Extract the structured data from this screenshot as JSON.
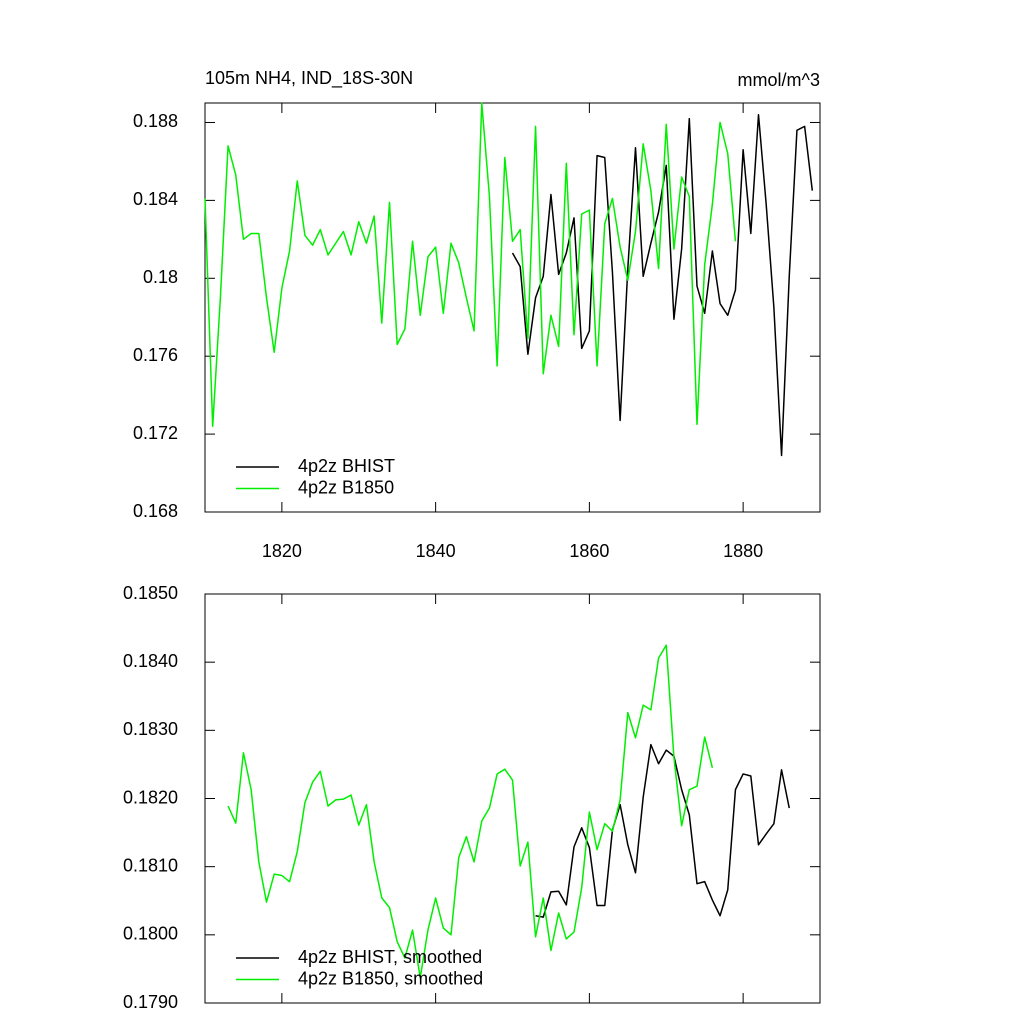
{
  "chart_data": [
    {
      "type": "line",
      "title": "105m NH4, IND_18S-30N",
      "subtitle": "mmol/m^3",
      "x": [
        1810,
        1811,
        1812,
        1813,
        1814,
        1815,
        1816,
        1817,
        1818,
        1819,
        1820,
        1821,
        1822,
        1823,
        1824,
        1825,
        1826,
        1827,
        1828,
        1829,
        1830,
        1831,
        1832,
        1833,
        1834,
        1835,
        1836,
        1837,
        1838,
        1839,
        1840,
        1841,
        1842,
        1843,
        1844,
        1845,
        1846,
        1847,
        1848,
        1849,
        1850,
        1851,
        1852,
        1853,
        1854,
        1855,
        1856,
        1857,
        1858,
        1859,
        1860,
        1861,
        1862,
        1863,
        1864,
        1865,
        1866,
        1867,
        1868,
        1869,
        1870,
        1871,
        1872,
        1873,
        1874,
        1875,
        1876,
        1877,
        1878,
        1879,
        1880,
        1881,
        1882,
        1883,
        1884,
        1885,
        1886,
        1887,
        1888,
        1889
      ],
      "series": [
        {
          "name": "4p2z BHIST",
          "color": "#000000",
          "values": [
            null,
            null,
            null,
            null,
            null,
            null,
            null,
            null,
            null,
            null,
            null,
            null,
            null,
            null,
            null,
            null,
            null,
            null,
            null,
            null,
            null,
            null,
            null,
            null,
            null,
            null,
            null,
            null,
            null,
            null,
            null,
            null,
            null,
            null,
            null,
            null,
            null,
            null,
            null,
            null,
            0.1813,
            0.1806,
            0.1761,
            0.179,
            0.1801,
            0.1843,
            0.1802,
            0.1813,
            0.1831,
            0.1764,
            0.1773,
            0.1863,
            0.1862,
            0.1803,
            0.1727,
            0.1805,
            0.1867,
            0.1801,
            0.1818,
            0.1834,
            0.1858,
            0.1779,
            0.1815,
            0.1882,
            0.1796,
            0.1782,
            0.1814,
            0.1787,
            0.1781,
            0.1794,
            0.1866,
            0.1823,
            0.1884,
            0.1838,
            0.1785,
            0.1709,
            0.1801,
            0.1876,
            0.1878,
            0.1845
          ]
        },
        {
          "name": "4p2z B1850",
          "color": "#00ee00",
          "values": [
            0.1841,
            0.1724,
            0.179,
            0.1868,
            0.1853,
            0.182,
            0.1823,
            0.1823,
            0.179,
            0.1762,
            0.1795,
            0.1814,
            0.185,
            0.1822,
            0.1817,
            0.1825,
            0.1812,
            0.1818,
            0.1824,
            0.1812,
            0.1829,
            0.1818,
            0.1832,
            0.1777,
            0.1839,
            0.1766,
            0.1774,
            0.1819,
            0.1781,
            0.1811,
            0.1816,
            0.1782,
            0.1818,
            0.1808,
            0.179,
            0.1773,
            0.189,
            0.1842,
            0.1755,
            0.1862,
            0.1819,
            0.1825,
            0.1769,
            0.1878,
            0.1751,
            0.1781,
            0.1765,
            0.1859,
            0.1771,
            0.1833,
            0.1835,
            0.1755,
            0.1828,
            0.1841,
            0.1816,
            0.1799,
            0.1824,
            0.1869,
            0.1845,
            0.1805,
            0.1879,
            0.1815,
            0.1852,
            0.1842,
            0.1725,
            0.1807,
            0.1838,
            0.188,
            0.1864,
            0.1819,
            null,
            null,
            null,
            null,
            null,
            null,
            null,
            null,
            null,
            null
          ]
        }
      ],
      "xlim": [
        1810,
        1890
      ],
      "xticks": [
        1820,
        1840,
        1860,
        1880
      ],
      "ylim": [
        0.168,
        0.189
      ],
      "yticks": [
        0.168,
        0.172,
        0.176,
        0.18,
        0.184,
        0.188
      ],
      "legend": "lower-left"
    },
    {
      "type": "line",
      "x": [
        1813,
        1814,
        1815,
        1816,
        1817,
        1818,
        1819,
        1820,
        1821,
        1822,
        1823,
        1824,
        1825,
        1826,
        1827,
        1828,
        1829,
        1830,
        1831,
        1832,
        1833,
        1834,
        1835,
        1836,
        1837,
        1838,
        1839,
        1840,
        1841,
        1842,
        1843,
        1844,
        1845,
        1846,
        1847,
        1848,
        1849,
        1850,
        1851,
        1852,
        1853,
        1854,
        1855,
        1856,
        1857,
        1858,
        1859,
        1860,
        1861,
        1862,
        1863,
        1864,
        1865,
        1866,
        1867,
        1868,
        1869,
        1870,
        1871,
        1872,
        1873,
        1874,
        1875,
        1876,
        1877,
        1878,
        1879,
        1880,
        1881,
        1882,
        1883,
        1884,
        1885,
        1886
      ],
      "series": [
        {
          "name": "4p2z BHIST, smoothed",
          "color": "#000000",
          "values": [
            null,
            null,
            null,
            null,
            null,
            null,
            null,
            null,
            null,
            null,
            null,
            null,
            null,
            null,
            null,
            null,
            null,
            null,
            null,
            null,
            null,
            null,
            null,
            null,
            null,
            null,
            null,
            null,
            null,
            null,
            null,
            null,
            null,
            null,
            null,
            null,
            null,
            null,
            null,
            null,
            0.18028,
            0.18026,
            0.18063,
            0.18064,
            0.18044,
            0.18129,
            0.18157,
            0.18128,
            0.18043,
            0.18043,
            0.18154,
            0.18191,
            0.18132,
            0.18091,
            0.18202,
            0.18279,
            0.18251,
            0.18271,
            0.18262,
            0.18213,
            0.18176,
            0.18075,
            0.18078,
            0.18051,
            0.18028,
            0.18066,
            0.18213,
            0.18236,
            0.18233,
            0.18132,
            0.18148,
            0.18163,
            0.18242,
            0.18186
          ]
        },
        {
          "name": "4p2z B1850, smoothed",
          "color": "#00ee00",
          "values": [
            0.18189,
            0.18164,
            0.18267,
            0.18213,
            0.18107,
            0.18048,
            0.18089,
            0.18087,
            0.18078,
            0.18122,
            0.18194,
            0.18224,
            0.1824,
            0.18189,
            0.18198,
            0.18199,
            0.18205,
            0.18161,
            0.18191,
            0.18107,
            0.18054,
            0.1804,
            0.1799,
            0.17966,
            0.18007,
            0.17937,
            0.18007,
            0.18054,
            0.1801,
            0.18,
            0.18113,
            0.18144,
            0.18107,
            0.18167,
            0.18186,
            0.18236,
            0.18243,
            0.18227,
            0.18101,
            0.18136,
            0.17997,
            0.18054,
            0.17977,
            0.18032,
            0.17994,
            0.18004,
            0.18069,
            0.1818,
            0.18125,
            0.18163,
            0.18152,
            0.18198,
            0.18326,
            0.18289,
            0.18337,
            0.1833,
            0.18406,
            0.18425,
            0.1826,
            0.1816,
            0.18213,
            0.18218,
            0.1829,
            0.18245,
            null,
            null,
            null,
            null,
            null,
            null,
            null,
            null,
            null,
            null
          ]
        }
      ],
      "xlim": [
        1810,
        1890
      ],
      "xticks": [
        1820,
        1840,
        1860,
        1880
      ],
      "xtick_labels": false,
      "ylim": [
        0.179,
        0.185
      ],
      "yticks": [
        {
          "value": 0.179,
          "label": "0.1790"
        },
        {
          "value": 0.18,
          "label": "0.1800"
        },
        {
          "value": 0.181,
          "label": "0.1810"
        },
        {
          "value": 0.182,
          "label": "0.1820"
        },
        {
          "value": 0.183,
          "label": "0.1830"
        },
        {
          "value": 0.184,
          "label": "0.1840"
        },
        {
          "value": 0.185,
          "label": "0.1850"
        }
      ],
      "legend": "lower-left"
    }
  ]
}
